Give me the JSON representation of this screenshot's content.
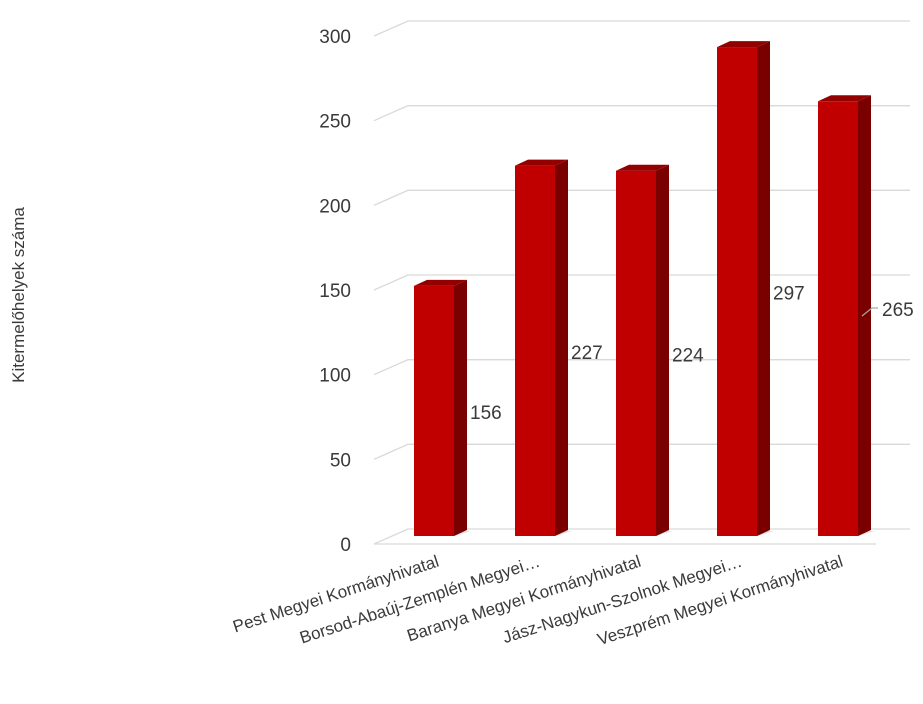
{
  "chart_data": {
    "type": "bar",
    "title": "",
    "xlabel": "",
    "ylabel": "Kitermelőhelyek száma",
    "categories": [
      "Pest Megyei Kormányhivatal",
      "Borsod-Abaúj-Zemplén Megyei…",
      "Baranya Megyei Kormányhivatal",
      "Jász-Nagykun-Szolnok Megyei…",
      "Veszprém Megyei Kormányhivatal"
    ],
    "values": [
      156,
      227,
      224,
      297,
      265
    ],
    "data_labels": [
      "156",
      "227",
      "224",
      "297",
      "265"
    ],
    "ylim": [
      0,
      300
    ],
    "yticks": [
      "0",
      "50",
      "100",
      "150",
      "200",
      "250",
      "300"
    ],
    "grid": true,
    "legend": "none",
    "style": "3d-column",
    "colors": {
      "bar_front": "#c00000",
      "bar_side": "#7a0000",
      "bar_top": "#930000",
      "grid": "#d9d9d9"
    }
  }
}
